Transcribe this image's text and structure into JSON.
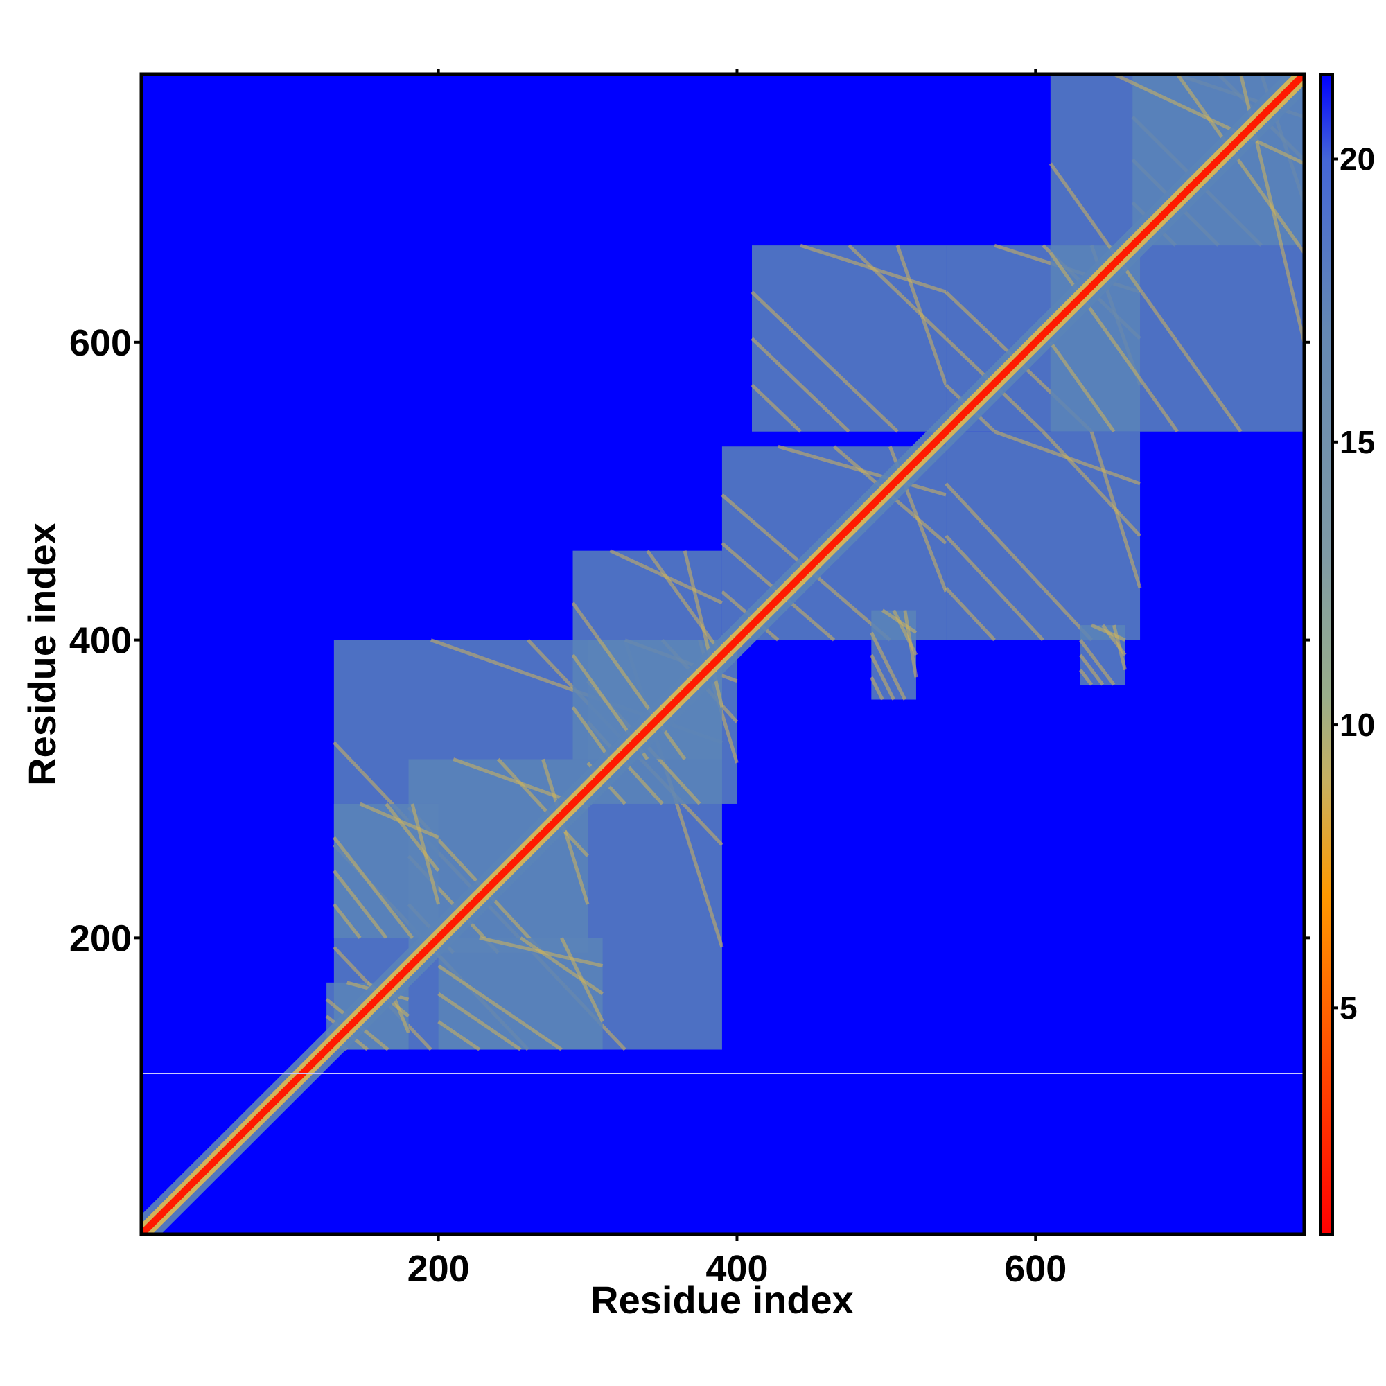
{
  "chart_data": {
    "type": "heatmap",
    "title": "",
    "xlabel": "Residue index",
    "ylabel": "Residue index",
    "xlim": [
      1,
      780
    ],
    "ylim": [
      1,
      780
    ],
    "x_ticks": [
      200,
      400,
      600
    ],
    "y_ticks": [
      200,
      400,
      600
    ],
    "x_tick_labels": [
      "200",
      "400",
      "600"
    ],
    "y_tick_labels": [
      "200",
      "400",
      "600"
    ],
    "colorbar": {
      "range": [
        1,
        21.5
      ],
      "ticks": [
        5,
        10,
        15,
        20
      ],
      "tick_labels": [
        "5",
        "10",
        "15",
        "20"
      ],
      "stops": [
        {
          "value": 1,
          "color": "#ff0000"
        },
        {
          "value": 4,
          "color": "#ff4a00"
        },
        {
          "value": 7,
          "color": "#ff9900"
        },
        {
          "value": 9,
          "color": "#c8b060"
        },
        {
          "value": 10.5,
          "color": "#9aae8a"
        },
        {
          "value": 13,
          "color": "#7f9aa5"
        },
        {
          "value": 17,
          "color": "#6488b4"
        },
        {
          "value": 20,
          "color": "#4466d8"
        },
        {
          "value": 21.5,
          "color": "#0000ff"
        }
      ]
    },
    "background_value": 21.5,
    "colors": {
      "background": "#0000ff",
      "contact": "#5b84b8",
      "near": "#d2b45a",
      "diagonal": "#ff1a00"
    },
    "diagonal_range": [
      1,
      780
    ],
    "contact_regions": [
      {
        "x": [
          130,
          390
        ],
        "y": [
          125,
          400
        ]
      },
      {
        "x": [
          125,
          180
        ],
        "y": [
          125,
          170
        ]
      },
      {
        "x": [
          180,
          300
        ],
        "y": [
          190,
          320
        ]
      },
      {
        "x": [
          300,
          400
        ],
        "y": [
          290,
          400
        ]
      },
      {
        "x": [
          130,
          200
        ],
        "y": [
          200,
          290
        ]
      },
      {
        "x": [
          200,
          310
        ],
        "y": [
          125,
          200
        ]
      },
      {
        "x": [
          390,
          540
        ],
        "y": [
          400,
          530
        ]
      },
      {
        "x": [
          410,
          540
        ],
        "y": [
          540,
          665
        ]
      },
      {
        "x": [
          540,
          670
        ],
        "y": [
          540,
          665
        ]
      },
      {
        "x": [
          540,
          670
        ],
        "y": [
          400,
          540
        ]
      },
      {
        "x": [
          665,
          780
        ],
        "y": [
          665,
          780
        ]
      },
      {
        "x": [
          610,
          780
        ],
        "y": [
          540,
          780
        ]
      },
      {
        "x": [
          290,
          390
        ],
        "y": [
          320,
          460
        ]
      },
      {
        "x": [
          490,
          520
        ],
        "y": [
          360,
          420
        ]
      },
      {
        "x": [
          630,
          660
        ],
        "y": [
          370,
          410
        ]
      }
    ]
  }
}
